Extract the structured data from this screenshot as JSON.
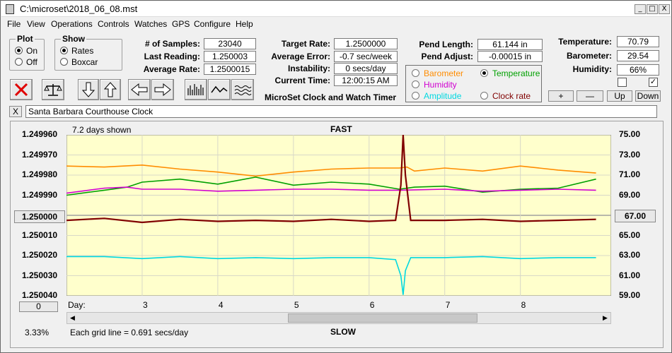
{
  "window": {
    "title": "C:\\microset\\2018_06_08.mst",
    "controls": [
      "_",
      "□",
      "X"
    ]
  },
  "menu": [
    "File",
    "View",
    "Operations",
    "Controls",
    "Watches",
    "GPS",
    "Configure",
    "Help"
  ],
  "plot_group": {
    "title": "Plot",
    "options": [
      "On",
      "Off"
    ],
    "selected": "On"
  },
  "show_group": {
    "title": "Show",
    "options": [
      "Rates",
      "Boxcar"
    ],
    "selected": "Rates"
  },
  "stats": {
    "num_samples_label": "# of Samples:",
    "num_samples": "23040",
    "last_reading_label": "Last Reading:",
    "last_reading": "1.250003",
    "average_rate_label": "Average Rate:",
    "average_rate": "1.2500015",
    "target_rate_label": "Target Rate:",
    "target_rate": "1.2500000",
    "average_error_label": "Average Error:",
    "average_error": "-0.7 sec/week",
    "instability_label": "Instability:",
    "instability": "0 secs/day",
    "current_time_label": "Current Time:",
    "current_time": "12:00:15 AM",
    "pend_length_label": "Pend Length:",
    "pend_length": "61.144 in",
    "pend_adjust_label": "Pend Adjust:",
    "pend_adjust": "-0.00015 in",
    "temperature_label": "Temperature:",
    "temperature": "70.79",
    "barometer_label": "Barometer:",
    "barometer": "29.54",
    "humidity_label": "Humidity:",
    "humidity": "66%"
  },
  "app_caption": "MicroSet Clock and Watch Timer",
  "legend": [
    {
      "label": "Barometer",
      "color": "#ff8c00",
      "selected": false
    },
    {
      "label": "Temperature",
      "color": "#00a000",
      "selected": true
    },
    {
      "label": "Humidity",
      "color": "#d000d0",
      "selected": false
    },
    {
      "label": "Clock rate",
      "color": "#800000",
      "selected": false
    },
    {
      "label": "Amplitude",
      "color": "#00d8e0",
      "selected": false
    }
  ],
  "right_buttons": [
    "+",
    "—",
    "Up",
    "Down"
  ],
  "checkboxes": [
    false,
    true
  ],
  "clock_name": "Santa Barbara Courthouse Clock",
  "close_x": "X",
  "status": {
    "zoom": "3.33%",
    "grid_note": "Each grid line = 0.691 secs/day"
  },
  "chart_data": {
    "type": "line",
    "top_label": "FAST",
    "bottom_label": "SLOW",
    "days_shown": "7.2 days shown",
    "xlabel": "Day:",
    "x_ticks": [
      "3",
      "4",
      "5",
      "6",
      "7",
      "8"
    ],
    "x_range": [
      2.0,
      9.2
    ],
    "left_ticks": [
      "1.249960",
      "1.249970",
      "1.249980",
      "1.249990",
      "1.250000",
      "1.250010",
      "1.250020",
      "1.250030",
      "1.250040"
    ],
    "left_center_value": "1.250000",
    "left_range": [
      1.25004,
      1.24996
    ],
    "right_ticks": [
      "75.00",
      "73.00",
      "71.00",
      "69.00",
      "67.00",
      "65.00",
      "63.00",
      "61.00",
      "59.00"
    ],
    "right_center_value": "67.00",
    "right_range": [
      59,
      75
    ],
    "left_button": "0",
    "background": "#ffffcc",
    "series": [
      {
        "name": "Barometer",
        "color": "#ff8c00",
        "x": [
          2.0,
          2.5,
          3.0,
          3.5,
          4.0,
          4.5,
          5.0,
          5.5,
          6.0,
          6.4,
          6.5,
          6.6,
          7.0,
          7.5,
          8.0,
          8.5,
          9.0
        ],
        "y": [
          71.9,
          71.8,
          72.0,
          71.6,
          71.3,
          70.9,
          71.3,
          71.6,
          71.7,
          71.7,
          71.8,
          71.4,
          71.7,
          71.4,
          71.9,
          71.5,
          71.2
        ]
      },
      {
        "name": "Temperature",
        "color": "#00a000",
        "x": [
          2.0,
          2.5,
          2.8,
          3.0,
          3.5,
          4.0,
          4.5,
          5.0,
          5.5,
          6.0,
          6.4,
          6.6,
          7.0,
          7.5,
          8.0,
          8.5,
          9.0
        ],
        "y": [
          69.0,
          69.5,
          69.8,
          70.3,
          70.6,
          70.1,
          70.8,
          70.0,
          70.3,
          70.1,
          69.6,
          69.8,
          69.9,
          69.3,
          69.6,
          69.7,
          70.6
        ]
      },
      {
        "name": "Humidity",
        "color": "#d000d0",
        "x": [
          2.0,
          2.5,
          2.8,
          3.0,
          3.5,
          4.0,
          4.5,
          5.0,
          5.5,
          6.0,
          6.4,
          7.0,
          7.5,
          8.0,
          8.5,
          9.0
        ],
        "y": [
          69.2,
          69.7,
          69.8,
          69.6,
          69.6,
          69.4,
          69.5,
          69.6,
          69.6,
          69.5,
          69.5,
          69.6,
          69.4,
          69.5,
          69.6,
          69.5
        ]
      },
      {
        "name": "Clock rate",
        "color": "#800000",
        "x": [
          2.0,
          2.5,
          3.0,
          3.5,
          4.0,
          4.5,
          5.0,
          5.5,
          6.0,
          6.35,
          6.42,
          6.45,
          6.48,
          6.55,
          7.0,
          7.5,
          8.0,
          8.5,
          9.0
        ],
        "y": [
          66.5,
          66.7,
          66.3,
          66.6,
          66.4,
          66.5,
          66.4,
          66.6,
          66.4,
          66.5,
          70.0,
          75.0,
          71.0,
          66.5,
          66.5,
          66.6,
          66.4,
          66.5,
          66.6
        ]
      },
      {
        "name": "Amplitude",
        "color": "#00d8e0",
        "x": [
          2.0,
          2.5,
          3.0,
          3.5,
          4.0,
          4.5,
          5.0,
          5.5,
          6.0,
          6.35,
          6.42,
          6.45,
          6.48,
          6.55,
          7.0,
          7.5,
          8.0,
          8.5,
          9.0
        ],
        "y": [
          62.9,
          62.9,
          62.7,
          62.9,
          62.7,
          62.8,
          62.7,
          62.8,
          62.8,
          62.6,
          61.0,
          59.1,
          61.5,
          62.8,
          62.8,
          62.9,
          62.7,
          62.8,
          62.8
        ]
      }
    ]
  }
}
